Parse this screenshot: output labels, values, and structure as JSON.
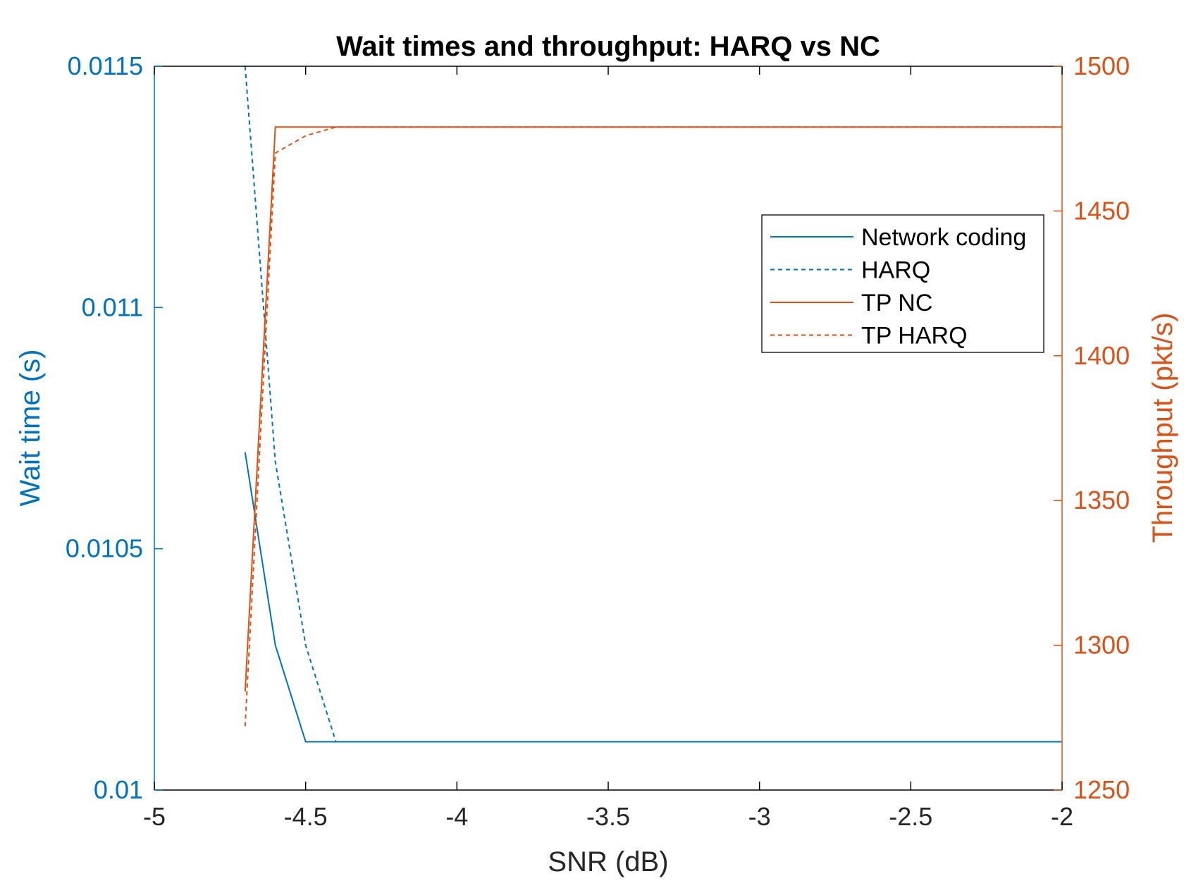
{
  "chart_data": {
    "type": "line",
    "title": "Wait times and throughput: HARQ vs NC",
    "xlabel": "SNR (dB)",
    "ylabel_left": "Wait time (s)",
    "ylabel_right": "Throughput (pkt/s)",
    "xlim": [
      -5,
      -2
    ],
    "ylim_left": [
      0.01,
      0.0115
    ],
    "ylim_right": [
      1250,
      1500
    ],
    "x_ticks": [
      "-5",
      "-4.5",
      "-4",
      "-3.5",
      "-3",
      "-2.5",
      "-2"
    ],
    "y_left_ticks": [
      "0.01",
      "0.0105",
      "0.011",
      "0.0115"
    ],
    "y_right_ticks": [
      "1250",
      "1300",
      "1350",
      "1400",
      "1450",
      "1500"
    ],
    "grid": false,
    "legend_position": "top-right",
    "colors": {
      "left_axis": "#0072BD",
      "right_axis": "#D95319",
      "axes": "#000000"
    },
    "series": [
      {
        "name": "Network coding",
        "axis": "left",
        "style": "solid",
        "color": "#0072BD",
        "x": [
          -4.7,
          -4.6,
          -4.5,
          -4.4,
          -2.0
        ],
        "y": [
          0.0107,
          0.0103,
          0.0101,
          0.0101,
          0.0101
        ]
      },
      {
        "name": "HARQ",
        "axis": "left",
        "style": "dashed",
        "color": "#0072BD",
        "x": [
          -4.7,
          -4.6,
          -4.5,
          -4.4,
          -2.0
        ],
        "y": [
          0.0115,
          0.01068,
          0.0103,
          0.0101,
          0.0101
        ]
      },
      {
        "name": "TP NC",
        "axis": "right",
        "style": "solid",
        "color": "#D95319",
        "x": [
          -4.7,
          -4.6,
          -4.5,
          -4.4,
          -2.0
        ],
        "y": [
          1284,
          1479,
          1479,
          1479,
          1479
        ]
      },
      {
        "name": "TP HARQ",
        "axis": "right",
        "style": "dashed",
        "color": "#D95319",
        "x": [
          -4.7,
          -4.6,
          -4.5,
          -4.4,
          -2.0
        ],
        "y": [
          1272,
          1470,
          1476,
          1479,
          1479
        ]
      }
    ]
  }
}
